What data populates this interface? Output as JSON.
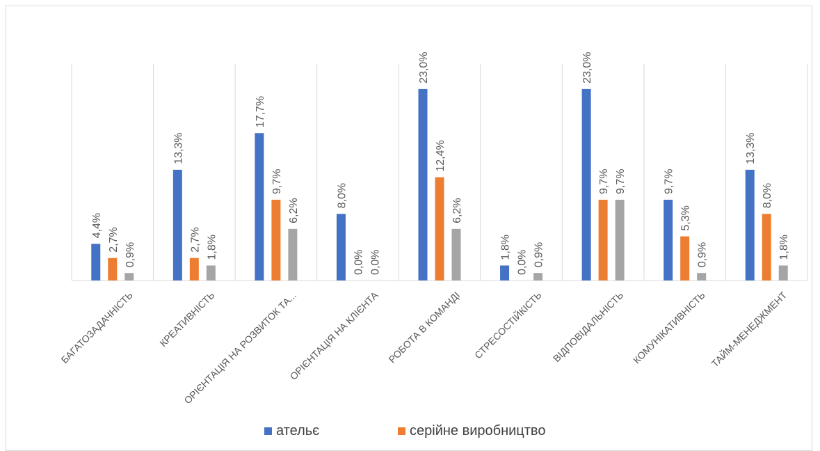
{
  "colors": {
    "series": [
      "#4472C4",
      "#ED7D31",
      "#A5A5A5"
    ],
    "label": "#595959",
    "axis": "#d9d9d9"
  },
  "chart_data": {
    "type": "bar",
    "title": "",
    "xlabel": "",
    "ylabel": "",
    "ylim": [
      0,
      26
    ],
    "grid": "vertical category separators",
    "legend_position": "bottom",
    "categories": [
      "БАГАТОЗАДАЧНІСТЬ",
      "КРЕАТИВНІСТЬ",
      "ОРІЄНТАЦІЯ НА РОЗВИТОК ТА...",
      "ОРІЄНТАЦІЯ НА КЛІЄНТА",
      "РОБОТА В КОМАНДІ",
      "СТРЕСОСТІЙКІСТЬ",
      "ВІДПОВІДАЛЬНІСТЬ",
      "КОМУНІКАТИВНІСТЬ",
      "ТАЙМ-МЕНЕДЖМЕНТ"
    ],
    "series": [
      {
        "name": "ательє",
        "values": [
          4.4,
          13.3,
          17.7,
          8.0,
          23.0,
          1.8,
          23.0,
          9.7,
          13.3
        ],
        "labels": [
          "4,4%",
          "13,3%",
          "17,7%",
          "8,0%",
          "23,0%",
          "1,8%",
          "23,0%",
          "9,7%",
          "13,3%"
        ]
      },
      {
        "name": "серійне виробництво",
        "values": [
          2.7,
          2.7,
          9.7,
          0.0,
          12.4,
          0.0,
          9.7,
          5.3,
          8.0
        ],
        "labels": [
          "2,7%",
          "2,7%",
          "9,7%",
          "0,0%",
          "12,4%",
          "0,0%",
          "9,7%",
          "5,3%",
          "8,0%"
        ]
      },
      {
        "values": [
          0.9,
          1.8,
          6.2,
          0.0,
          6.2,
          0.9,
          9.7,
          0.9,
          1.8
        ],
        "labels": [
          "0,9%",
          "1,8%",
          "6,2%",
          "0,0%",
          "6,2%",
          "0,9%",
          "9,7%",
          "0,9%",
          "1,8%"
        ]
      }
    ]
  },
  "legend": {
    "items": [
      "ательє",
      "серійне виробництво"
    ]
  }
}
